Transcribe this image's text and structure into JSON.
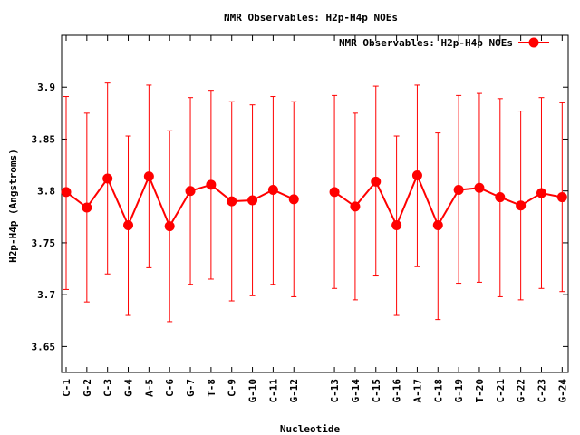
{
  "chart_data": {
    "type": "line",
    "title": "NMR Observables: H2p-H4p NOEs",
    "xlabel": "Nucleotide",
    "ylabel": "H2p-H4p (Angstroms)",
    "ylim": [
      3.625,
      3.95
    ],
    "yticks": [
      3.65,
      3.7,
      3.75,
      3.8,
      3.85,
      3.9
    ],
    "ytick_labels": [
      "3.65",
      "3.7",
      "3.75",
      "3.8",
      "3.85",
      "3.9"
    ],
    "grid": false,
    "legend": "top-right",
    "categories": [
      "C-1",
      "G-2",
      "C-3",
      "G-4",
      "A-5",
      "C-6",
      "G-7",
      "T-8",
      "C-9",
      "G-10",
      "C-11",
      "G-12",
      "C-13",
      "G-14",
      "C-15",
      "G-16",
      "A-17",
      "C-18",
      "G-19",
      "T-20",
      "C-21",
      "G-22",
      "C-23",
      "G-24"
    ],
    "series": [
      {
        "name": "NMR Observables: H2p-H4p NOEs",
        "color": "#ff0000",
        "segments": [
          [
            0,
            11
          ],
          [
            12,
            23
          ]
        ],
        "values": [
          3.799,
          3.784,
          3.812,
          3.767,
          3.814,
          3.766,
          3.8,
          3.806,
          3.79,
          3.791,
          3.801,
          3.792,
          3.799,
          3.785,
          3.809,
          3.767,
          3.815,
          3.767,
          3.801,
          3.803,
          3.794,
          3.786,
          3.798,
          3.794
        ],
        "err_low": [
          3.705,
          3.693,
          3.72,
          3.68,
          3.726,
          3.674,
          3.71,
          3.715,
          3.694,
          3.699,
          3.71,
          3.698,
          3.706,
          3.695,
          3.718,
          3.68,
          3.727,
          3.676,
          3.711,
          3.712,
          3.698,
          3.695,
          3.706,
          3.703
        ],
        "err_high": [
          3.891,
          3.875,
          3.904,
          3.853,
          3.902,
          3.858,
          3.89,
          3.897,
          3.886,
          3.883,
          3.891,
          3.886,
          3.892,
          3.875,
          3.901,
          3.853,
          3.902,
          3.856,
          3.892,
          3.894,
          3.889,
          3.877,
          3.89,
          3.885
        ]
      }
    ]
  }
}
